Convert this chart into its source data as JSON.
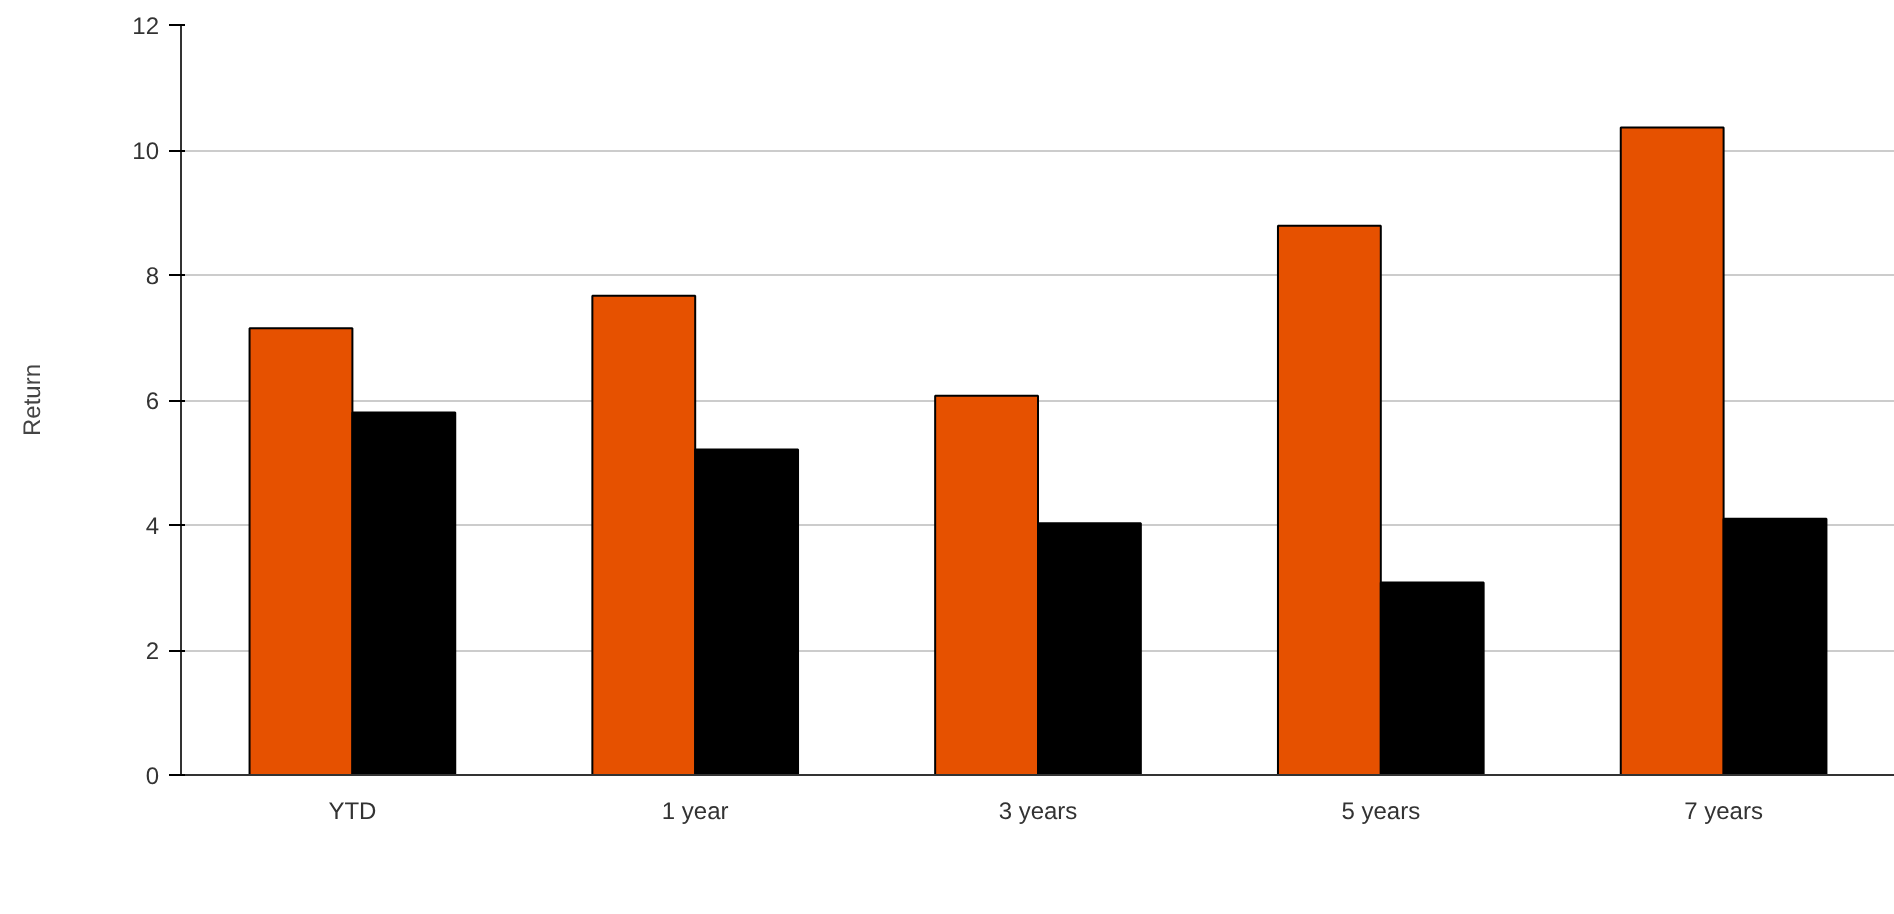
{
  "chart_data": {
    "type": "bar",
    "ylabel": "Return",
    "categories": [
      "YTD",
      "1 year",
      "3 years",
      "5 years",
      "7 years"
    ],
    "series": [
      {
        "color": "#e65100",
        "values": [
          7.15,
          7.67,
          6.07,
          8.79,
          10.36
        ]
      },
      {
        "color": "#000000",
        "values": [
          5.8,
          5.21,
          4.03,
          3.08,
          4.1
        ]
      }
    ],
    "ylim": [
      0,
      12
    ],
    "yticks": [
      0,
      2,
      4,
      6,
      8,
      10,
      12
    ],
    "grid": "y"
  }
}
